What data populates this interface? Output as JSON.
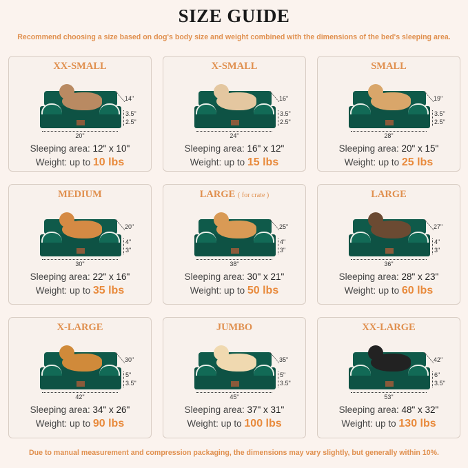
{
  "title": "SIZE GUIDE",
  "subtitle": "Recommend choosing a size based on dog's body size and weight combined with the dimensions of the bed's sleeping area.",
  "footer": "Due to manual measurement and compression packaging, the dimensions may vary slightly, but generally within 10%.",
  "colors": {
    "accent": "#e0904f",
    "bed": "#0e5244",
    "background": "#fbf3ee"
  },
  "labels": {
    "sleeping": "Sleeping area:",
    "weight": "Weight:  up to"
  },
  "sizes": [
    {
      "name": "XX-SMALL",
      "note": "",
      "pet": "cat",
      "width": "20\"",
      "depth": "14\"",
      "height": "3.5\"",
      "base": "2.5\"",
      "area": "12\" x 10\"",
      "weight": "10 lbs"
    },
    {
      "name": "X-SMALL",
      "note": "",
      "pet": "dog",
      "width": "24\"",
      "depth": "16\"",
      "height": "3.5\"",
      "base": "2.5\"",
      "area": "16\" x 12\"",
      "weight": "15 lbs"
    },
    {
      "name": "SMALL",
      "note": "",
      "pet": "dog",
      "width": "28\"",
      "depth": "19\"",
      "height": "3.5\"",
      "base": "2.5\"",
      "area": "20\" x 15\"",
      "weight": "25 lbs"
    },
    {
      "name": "MEDIUM",
      "note": "",
      "pet": "dog",
      "width": "30\"",
      "depth": "20\"",
      "height": "4\"",
      "base": "3\"",
      "area": "22\" x 16\"",
      "weight": "35 lbs"
    },
    {
      "name": "LARGE",
      "note": "( for crate )",
      "pet": "dog",
      "width": "38\"",
      "depth": "25\"",
      "height": "4\"",
      "base": "3\"",
      "area": "30\" x 21\"",
      "weight": "50 lbs"
    },
    {
      "name": "LARGE",
      "note": "",
      "pet": "dog",
      "width": "36\"",
      "depth": "27\"",
      "height": "4\"",
      "base": "3\"",
      "area": "28\" x 23\"",
      "weight": "60 lbs"
    },
    {
      "name": "X-LARGE",
      "note": "",
      "pet": "dog",
      "width": "42\"",
      "depth": "30\"",
      "height": "5\"",
      "base": "3.5\"",
      "area": "34\" x 26\"",
      "weight": "90 lbs"
    },
    {
      "name": "JUMBO",
      "note": "",
      "pet": "dog",
      "width": "45\"",
      "depth": "35\"",
      "height": "5\"",
      "base": "3.5\"",
      "area": "37\" x 31\"",
      "weight": "100 lbs"
    },
    {
      "name": "XX-LARGE",
      "note": "",
      "pet": "dog",
      "width": "53\"",
      "depth": "42\"",
      "height": "6\"",
      "base": "3.5\"",
      "area": "48\" x 32\"",
      "weight": "130 lbs"
    }
  ]
}
